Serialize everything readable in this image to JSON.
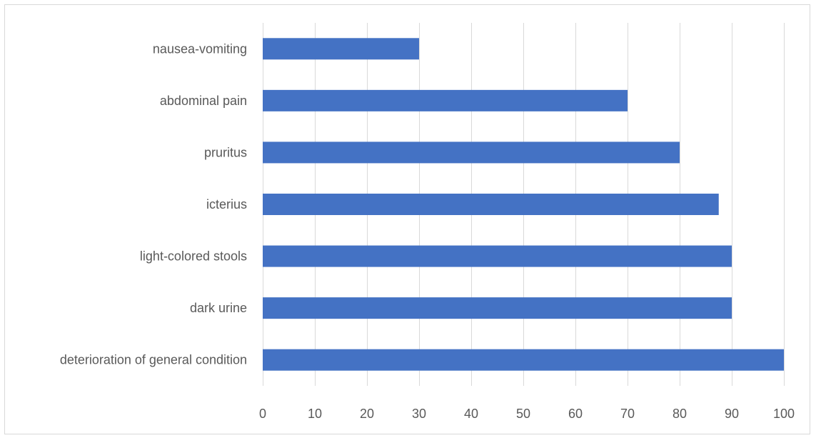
{
  "chart_data": {
    "type": "bar",
    "orientation": "horizontal",
    "categories": [
      "nausea-vomiting",
      "abdominal pain",
      "pruritus",
      "icterius",
      "light-colored stools",
      "dark urine",
      "deterioration of general condition"
    ],
    "values": [
      30,
      70,
      80,
      87.5,
      90,
      90,
      100
    ],
    "xlim": [
      0,
      100
    ],
    "xticks": [
      "0",
      "10",
      "20",
      "30",
      "40",
      "50",
      "60",
      "70",
      "80",
      "90",
      "100"
    ],
    "title": "",
    "xlabel": "",
    "ylabel": "",
    "grid": true,
    "legend": "none",
    "bar_color": "#4472C4",
    "grid_color": "#d9d9d9"
  }
}
